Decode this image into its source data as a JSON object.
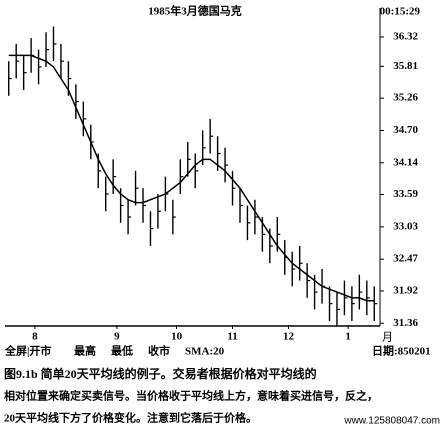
{
  "chart_data": {
    "type": "ohlc",
    "title": "1985年3月德国马克",
    "clock": "00:15:29",
    "x_unit_label": "月",
    "legend_text": [
      "全屏|开市",
      "最高",
      "最低",
      "收市",
      "SMA:20"
    ],
    "date_label": "日期:850201",
    "xlim": [
      0,
      50
    ],
    "xticks": [
      {
        "value": 4,
        "label": "8"
      },
      {
        "value": 15,
        "label": "9"
      },
      {
        "value": 23,
        "label": "10"
      },
      {
        "value": 30.5,
        "label": "11"
      },
      {
        "value": 38,
        "label": "12"
      },
      {
        "value": 46,
        "label": "1"
      }
    ],
    "ylim": [
      31.33,
      36.7
    ],
    "yticks": [
      {
        "value": 36.32,
        "label": "36.32"
      },
      {
        "value": 35.81,
        "label": "35.81"
      },
      {
        "value": 35.26,
        "label": "35.26"
      },
      {
        "value": 34.7,
        "label": "34.70"
      },
      {
        "value": 34.14,
        "label": "34.14"
      },
      {
        "value": 33.59,
        "label": "33.59"
      },
      {
        "value": 33.03,
        "label": "33.03"
      },
      {
        "value": 32.47,
        "label": "32.47"
      },
      {
        "value": 31.92,
        "label": "31.92"
      },
      {
        "value": 31.36,
        "label": "31.36"
      }
    ],
    "color": "#000000",
    "high": [
      35.9,
      36.2,
      36.0,
      36.3,
      36.1,
      36.4,
      36.5,
      36.2,
      35.9,
      35.5,
      35.2,
      34.8,
      34.3,
      33.9,
      34.2,
      33.7,
      33.5,
      34.0,
      33.7,
      33.3,
      33.6,
      33.9,
      33.5,
      34.2,
      34.5,
      34.3,
      34.7,
      34.9,
      34.6,
      34.4,
      34.0,
      33.7,
      33.4,
      33.5,
      33.2,
      33.0,
      33.2,
      32.8,
      32.6,
      32.7,
      32.4,
      32.2,
      32.3,
      32.0,
      31.9,
      32.1,
      32.0,
      32.2,
      32.1,
      32.0
    ],
    "low": [
      35.3,
      35.6,
      35.4,
      35.7,
      35.5,
      35.8,
      35.9,
      35.6,
      35.3,
      34.9,
      34.6,
      34.2,
      33.7,
      33.3,
      33.6,
      33.1,
      32.9,
      33.4,
      33.1,
      32.7,
      33.0,
      33.3,
      32.9,
      33.6,
      33.9,
      33.7,
      34.1,
      34.3,
      34.0,
      33.8,
      33.4,
      33.1,
      32.8,
      32.9,
      32.6,
      32.4,
      32.6,
      32.2,
      32.0,
      32.1,
      31.8,
      31.6,
      31.7,
      31.4,
      31.3,
      31.5,
      31.4,
      31.6,
      31.5,
      31.4
    ],
    "close": [
      35.6,
      35.9,
      35.7,
      36.0,
      35.8,
      36.1,
      36.2,
      35.9,
      35.6,
      35.2,
      34.9,
      34.5,
      34.0,
      33.6,
      33.9,
      33.4,
      33.2,
      33.7,
      33.4,
      33.0,
      33.3,
      33.6,
      33.2,
      33.9,
      34.2,
      34.0,
      34.4,
      34.6,
      34.3,
      34.1,
      33.7,
      33.4,
      33.1,
      33.2,
      32.9,
      32.7,
      32.9,
      32.5,
      32.3,
      32.4,
      32.1,
      31.9,
      32.0,
      31.7,
      31.6,
      31.8,
      31.7,
      31.9,
      31.8,
      31.7
    ],
    "sma": [
      36.0,
      36.0,
      36.0,
      36.0,
      35.95,
      35.9,
      35.8,
      35.6,
      35.4,
      35.1,
      34.8,
      34.5,
      34.2,
      33.95,
      33.75,
      33.6,
      33.5,
      33.45,
      33.45,
      33.5,
      33.55,
      33.6,
      33.7,
      33.8,
      33.95,
      34.1,
      34.2,
      34.2,
      34.1,
      34.0,
      33.85,
      33.7,
      33.5,
      33.3,
      33.1,
      32.9,
      32.7,
      32.55,
      32.4,
      32.3,
      32.2,
      32.1,
      32.0,
      31.95,
      31.9,
      31.85,
      31.8,
      31.8,
      31.75,
      31.75
    ],
    "caption": [
      "图9.1b  简单20天平均线的例子。交易者根据价格对平均线的",
      "相对位置来确定买卖信号。当价格收于平均线上方，意味着买进信号，反之，",
      "20天平均线下方了价格变化。注意到它落后于价格。"
    ],
    "watermark": "www.125808047.com"
  }
}
